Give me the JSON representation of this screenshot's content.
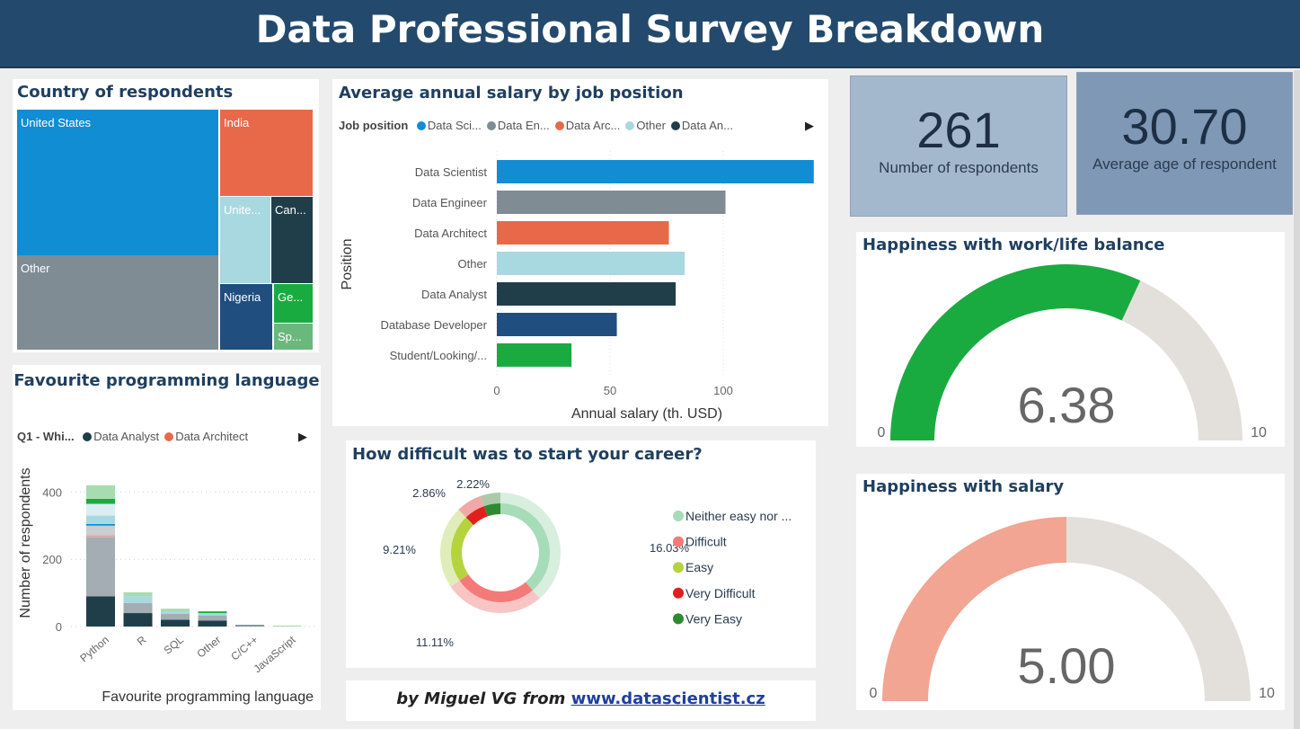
{
  "header": {
    "title": "Data Professional Survey Breakdown"
  },
  "treemap": {
    "title": "Country of respondents",
    "cells": [
      {
        "label": "United States",
        "color": "#118dd4"
      },
      {
        "label": "Other",
        "color": "#7f8c93"
      },
      {
        "label": "India",
        "color": "#e8694a"
      },
      {
        "label": "Unite...",
        "color": "#a8d8e0"
      },
      {
        "label": "Can...",
        "color": "#203e4a"
      },
      {
        "label": "Nigeria",
        "color": "#1f4e7f"
      },
      {
        "label": "Ge...",
        "color": "#1aab40"
      },
      {
        "label": "Sp...",
        "color": "#6bb87c"
      }
    ]
  },
  "salary": {
    "title": "Average annual salary by job position",
    "legend_title": "Job position",
    "legend": [
      {
        "label": "Data Sci...",
        "color": "#118dd4"
      },
      {
        "label": "Data En...",
        "color": "#7f8c93"
      },
      {
        "label": "Data Arc...",
        "color": "#e8694a"
      },
      {
        "label": "Other",
        "color": "#a8d8e0"
      },
      {
        "label": "Data An...",
        "color": "#203e4a"
      }
    ],
    "next_icon": "▶"
  },
  "lang": {
    "title": "Favourite programming language",
    "legend_title": "Q1 - Whi...",
    "legend": [
      {
        "label": "Data Analyst",
        "color": "#203e4a"
      },
      {
        "label": "Data Architect",
        "color": "#e8694a"
      }
    ],
    "next_icon": "▶"
  },
  "difficulty": {
    "title": "How difficult was to start your career?"
  },
  "kpis": [
    {
      "value": "261",
      "label": "Number of respondents"
    },
    {
      "value": "30.70",
      "label": "Average age of respondent"
    }
  ],
  "gauges": [
    {
      "title": "Happiness with work/life balance",
      "value": 6.38,
      "display": "6.38",
      "min": "0",
      "max": "10",
      "color": "#1aab40"
    },
    {
      "title": "Happiness with salary",
      "value": 5.0,
      "display": "5.00",
      "min": "0",
      "max": "10",
      "color": "#f1a592"
    }
  ],
  "footer": {
    "prefix": "by Miguel VG from ",
    "link": "www.datascientist.cz"
  },
  "chart_data": [
    {
      "type": "bar",
      "title": "Average annual salary by job position",
      "xlabel": "Annual salary (th. USD)",
      "ylabel": "Position",
      "xlim": [
        0,
        140
      ],
      "xticks": [
        "0",
        "50",
        "100"
      ],
      "categories": [
        "Data Scientist",
        "Data Engineer",
        "Data Architect",
        "Other",
        "Data Analyst",
        "Database Developer",
        "Student/Looking/..."
      ],
      "values": [
        140,
        101,
        76,
        83,
        79,
        53,
        33
      ],
      "colors": [
        "#118dd4",
        "#7f8c93",
        "#e8694a",
        "#a8d8e0",
        "#203e4a",
        "#1f4e7f",
        "#1aab40"
      ]
    },
    {
      "type": "bar",
      "stacked": true,
      "title": "Favourite programming language",
      "xlabel": "Favourite programming language",
      "ylabel": "Number of respondents",
      "ylim": [
        0,
        440
      ],
      "yticks": [
        "0",
        "200",
        "400"
      ],
      "categories": [
        "Python",
        "R",
        "SQL",
        "Other",
        "C/C++",
        "JavaScript"
      ],
      "segments": [
        [
          [
            90,
            "#203e4a"
          ],
          [
            175,
            "#a3adb3"
          ],
          [
            7,
            "#d8a8a8"
          ],
          [
            28,
            "#c8ced2"
          ],
          [
            5,
            "#118dd4"
          ],
          [
            25,
            "#a8d8e0"
          ],
          [
            35,
            "#d9edf2"
          ],
          [
            15,
            "#1aab40"
          ],
          [
            40,
            "#a6dcb0"
          ]
        ],
        [
          [
            40,
            "#203e4a"
          ],
          [
            30,
            "#a3adb3"
          ],
          [
            20,
            "#a8d8e0"
          ],
          [
            12,
            "#a6dcb0"
          ]
        ],
        [
          [
            20,
            "#203e4a"
          ],
          [
            18,
            "#a3adb3"
          ],
          [
            6,
            "#a8d8e0"
          ],
          [
            9,
            "#a6dcb0"
          ]
        ],
        [
          [
            18,
            "#203e4a"
          ],
          [
            15,
            "#a3adb3"
          ],
          [
            7,
            "#a8d8e0"
          ],
          [
            5,
            "#1aab40"
          ]
        ],
        [
          [
            5,
            "#7f8c93"
          ]
        ],
        [
          [
            3,
            "#a6dcb0"
          ]
        ]
      ]
    },
    {
      "type": "pie",
      "title": "How difficult was to start your career?",
      "donut": true,
      "categories": [
        "Neither easy nor ...",
        "Difficult",
        "Easy",
        "Very Difficult",
        "Very Easy"
      ],
      "labels": [
        "16.03%",
        "11.11%",
        "9.21%",
        "2.86%",
        "2.22%"
      ],
      "values": [
        16.03,
        11.11,
        9.21,
        2.86,
        2.22
      ],
      "colors": [
        "#a6dcb8",
        "#f47a7a",
        "#b5d33d",
        "#e0201c",
        "#2e8a2e"
      ],
      "outer_colors": [
        "#d8eedf",
        "#f9c4c4",
        "#e0edb8",
        "#f2a8a8",
        "#aacaa8"
      ]
    }
  ]
}
